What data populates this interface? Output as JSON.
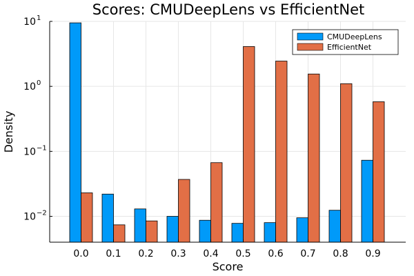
{
  "chart_data": {
    "type": "bar",
    "title": "Scores: CMUDeepLens vs EfficientNet",
    "xlabel": "Score",
    "ylabel": "Density",
    "yscale": "log",
    "ylim": [
      0.004,
      10
    ],
    "y_ticks": [
      {
        "value": 0.01,
        "base": "10",
        "exp": "−2"
      },
      {
        "value": 0.1,
        "base": "10",
        "exp": "−1"
      },
      {
        "value": 1,
        "base": "10",
        "exp": "0"
      },
      {
        "value": 10,
        "base": "10",
        "exp": "1"
      }
    ],
    "categories": [
      "0.0",
      "0.1",
      "0.2",
      "0.3",
      "0.4",
      "0.5",
      "0.6",
      "0.7",
      "0.8",
      "0.9"
    ],
    "series": [
      {
        "name": "CMUDeepLens",
        "color": "#009AF9",
        "values": [
          9.5,
          0.022,
          0.013,
          0.01,
          0.0087,
          0.0078,
          0.008,
          0.0095,
          0.0124,
          0.073
        ]
      },
      {
        "name": "EfficientNet",
        "color": "#E26F46",
        "values": [
          0.023,
          0.0074,
          0.0085,
          0.037,
          0.067,
          4.1,
          2.45,
          1.55,
          1.1,
          0.58
        ]
      }
    ],
    "grid": true,
    "legend_position": "top-right"
  }
}
